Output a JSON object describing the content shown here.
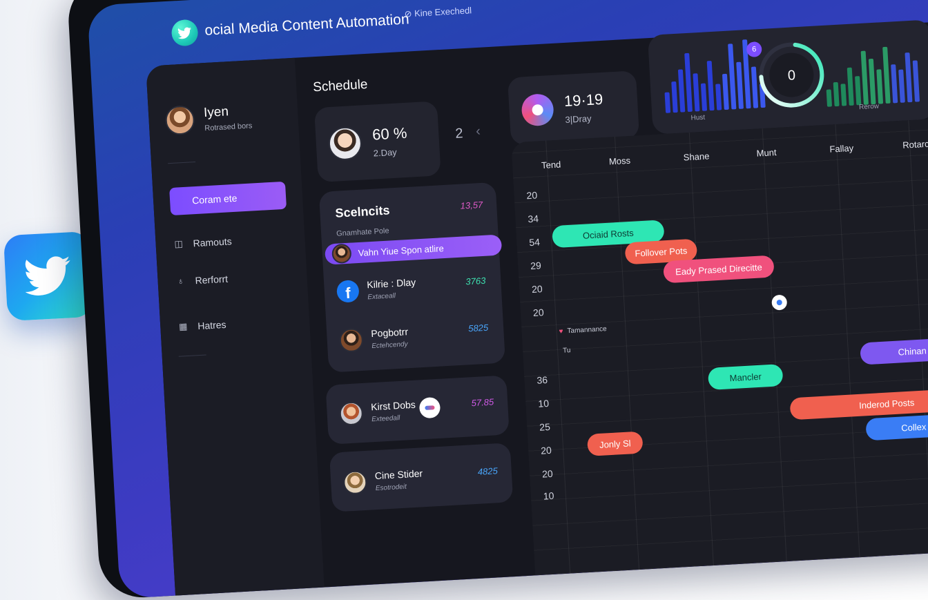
{
  "app": {
    "title": "ocial Media Content Automation",
    "subtitle": "Kine Exechedl"
  },
  "sidebar": {
    "profile": {
      "name": "Iyen",
      "sub": "Rotrased bors"
    },
    "nav": [
      {
        "label": "Coram ete",
        "icon": "dashboard",
        "active": true
      },
      {
        "label": "Ramouts",
        "icon": "camera-icon"
      },
      {
        "label": "Rerforrt",
        "icon": "location-pin-icon"
      },
      {
        "label": "Hatres",
        "icon": "grid-icon"
      }
    ]
  },
  "schedule": {
    "title": "Schedule",
    "stat1": {
      "value": "60 %",
      "label": "2.Day"
    },
    "pager": "2",
    "stat2": {
      "value": "19·19",
      "label": "3|Dray"
    }
  },
  "list": {
    "title": "Scelncits",
    "count": "13,57",
    "sub": "Gnamhate Pole",
    "highlight": "Vahn Yiue Spon atlire",
    "rows": [
      {
        "title": "Kilrie : Dlay",
        "sub": "Extaceall",
        "value": "3763",
        "color": "#3ee0b0"
      },
      {
        "title": "Pogbotrr",
        "sub": "Ectehcendy",
        "value": "5825",
        "color": "#4aa8ff"
      }
    ],
    "cards": [
      {
        "title": "Kirst Dobs",
        "sub": "Exteedall",
        "value": "57.85",
        "color": "#d15ae8"
      },
      {
        "title": "Cine Stider",
        "sub": "Esotrodeit",
        "value": "4825",
        "color": "#4aa8ff"
      }
    ]
  },
  "widgets": {
    "left_label": "Hust",
    "right_label": "Rerow",
    "badge": "6",
    "ring_value": "0",
    "left_bars": [
      0.3,
      0.45,
      0.62,
      0.85,
      0.55,
      0.4,
      0.72,
      0.38,
      0.52,
      0.95,
      0.68,
      1.0,
      0.6,
      0.35
    ],
    "right_bars": [
      0.25,
      0.35,
      0.32,
      0.55,
      0.42,
      0.78,
      0.66,
      0.5,
      0.82,
      0.56,
      0.48,
      0.72,
      0.6
    ],
    "ring_progress": 0.72
  },
  "calendar": {
    "days": [
      "Tend",
      "Moss",
      "Shane",
      "Munt",
      "Fallay",
      "Rotarcl"
    ],
    "times_top": [
      "20",
      "34",
      "54",
      "29",
      "20",
      "20"
    ],
    "times_bottom": [
      "36",
      "10",
      "25",
      "20",
      "20",
      "10"
    ],
    "legend1": "Tamannance",
    "legend2": "Tu",
    "events": [
      {
        "label": "Ociaid Rosts",
        "color": "#2ee6b4",
        "text": "#0d3b33"
      },
      {
        "label": "Follover Pots",
        "color": "#f0604f",
        "text": "#ffffff"
      },
      {
        "label": "Eady Prased Direcitte",
        "color": "#f0517d",
        "text": "#ffffff"
      },
      {
        "label": "Mancler",
        "color": "#2ee6b4",
        "text": "#0d3b33"
      },
      {
        "label": "Chinan Pots",
        "color": "#7e58f0",
        "text": "#ffffff"
      },
      {
        "label": "Inderod Posts",
        "color": "#f0604f",
        "text": "#ffffff"
      },
      {
        "label": "Collex Pots",
        "color": "#3a7df5",
        "text": "#ffffff"
      },
      {
        "label": "Jonly Sl",
        "color": "#f0604f",
        "text": "#ffffff"
      }
    ]
  },
  "colors": {
    "accent": "#7c4dff",
    "teal": "#2ee6b4",
    "coral": "#f0604f",
    "pink": "#f0517d",
    "blue": "#3a7df5"
  }
}
